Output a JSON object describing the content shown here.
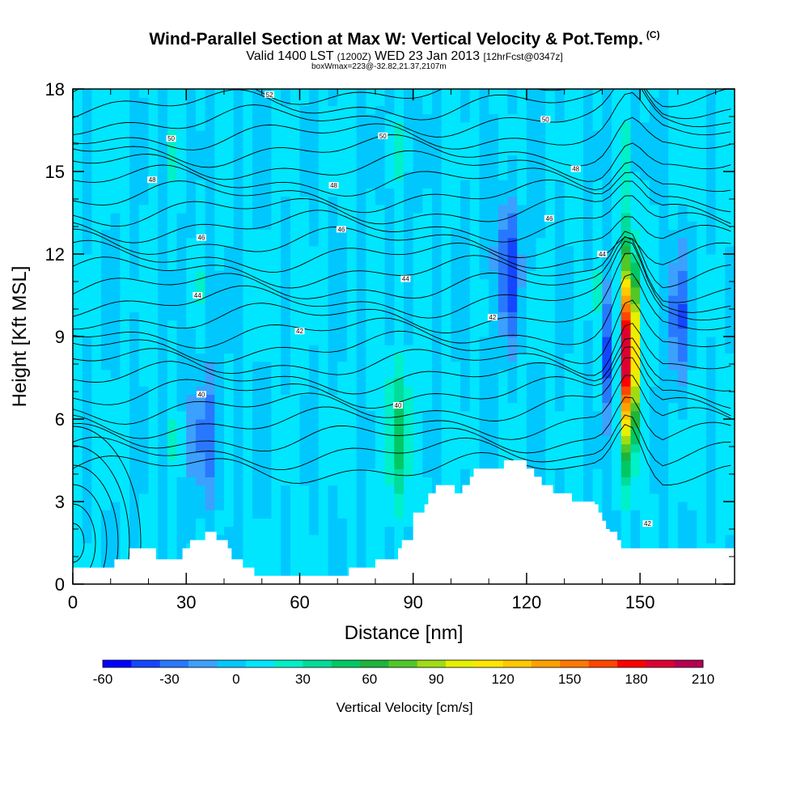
{
  "header": {
    "title": "Wind-Parallel Section at Max W: Vertical Velocity & Pot.Temp.",
    "title_mark": "(C)",
    "subtitle_a": "Valid 1400 LST",
    "subtitle_b": "(1200Z)",
    "subtitle_c": "WED 23 Jan 2013",
    "subtitle_d": "[12hrFcst@0347z]",
    "subtitle2": "boxWmax=223@-32.82,21.37,2107m"
  },
  "chart_data": {
    "type": "heatmap",
    "xlabel": "Distance [nm]",
    "ylabel": "Height [Kft MSL]",
    "xlim": [
      0,
      175
    ],
    "ylim": [
      0,
      18
    ],
    "x_ticks": [
      0,
      30,
      60,
      90,
      120,
      150
    ],
    "y_ticks": [
      0,
      3,
      6,
      9,
      12,
      15,
      18
    ],
    "colorbar": {
      "label": "Vertical Velocity [cm/s]",
      "min": -60,
      "max": 210,
      "step": 15,
      "tick_labels": [
        -60,
        -30,
        0,
        30,
        60,
        90,
        120,
        150,
        180,
        210
      ],
      "colors": [
        "#0000ff",
        "#1446ff",
        "#2878ff",
        "#3ca0ff",
        "#00c8ff",
        "#00e6ff",
        "#00f0c8",
        "#00dc9a",
        "#00c864",
        "#1eb43c",
        "#50c828",
        "#a0dc14",
        "#e6f000",
        "#ffe600",
        "#ffc800",
        "#ffa000",
        "#ff7800",
        "#ff4600",
        "#ff0000",
        "#dc0032",
        "#b40050"
      ]
    },
    "terrain": [
      [
        0,
        0.6
      ],
      [
        10,
        0.6
      ],
      [
        11,
        0.9
      ],
      [
        15,
        1.3
      ],
      [
        21,
        1.3
      ],
      [
        22,
        0.9
      ],
      [
        28,
        0.9
      ],
      [
        29,
        1.3
      ],
      [
        31,
        1.6
      ],
      [
        35,
        1.9
      ],
      [
        38,
        1.6
      ],
      [
        41,
        1.3
      ],
      [
        42,
        0.9
      ],
      [
        45,
        0.6
      ],
      [
        48,
        0.3
      ],
      [
        68,
        0.3
      ],
      [
        73,
        0.6
      ],
      [
        80,
        0.9
      ],
      [
        84,
        0.9
      ],
      [
        86,
        1.3
      ],
      [
        87,
        1.6
      ],
      [
        90,
        2.6
      ],
      [
        93,
        2.9
      ],
      [
        94,
        3.3
      ],
      [
        96,
        3.6
      ],
      [
        100,
        3.6
      ],
      [
        101,
        3.3
      ],
      [
        103,
        3.6
      ],
      [
        105,
        3.9
      ],
      [
        106,
        4.2
      ],
      [
        113,
        4.2
      ],
      [
        114,
        4.5
      ],
      [
        118,
        4.5
      ],
      [
        120,
        4.2
      ],
      [
        122,
        3.9
      ],
      [
        124,
        3.6
      ],
      [
        127,
        3.3
      ],
      [
        131,
        3.3
      ],
      [
        132,
        3.0
      ],
      [
        137,
        3.0
      ],
      [
        138,
        2.9
      ],
      [
        139,
        2.6
      ],
      [
        140,
        2.3
      ],
      [
        141,
        2.0
      ],
      [
        142,
        1.9
      ],
      [
        144,
        1.6
      ],
      [
        145,
        1.3
      ],
      [
        175,
        1.3
      ]
    ],
    "features": [
      {
        "kind": "updraft",
        "x": 147,
        "y": 8.5,
        "value": 223
      },
      {
        "kind": "downdraft",
        "x": 142,
        "y": 8.5,
        "value": -55
      },
      {
        "kind": "downdraft",
        "x": 160,
        "y": 9.5,
        "value": -60
      },
      {
        "kind": "downdraft",
        "x": 115,
        "y": 11.5,
        "value": -45
      },
      {
        "kind": "downdraft",
        "x": 35,
        "y": 5.5,
        "value": -30
      },
      {
        "kind": "updraft",
        "x": 86,
        "y": 5.5,
        "value": 35
      }
    ],
    "isentrope_labels": [
      {
        "x": 52,
        "y": 17.8,
        "text": "52"
      },
      {
        "x": 26,
        "y": 16.2,
        "text": "50"
      },
      {
        "x": 82,
        "y": 16.3,
        "text": "50"
      },
      {
        "x": 125,
        "y": 16.9,
        "text": "50"
      },
      {
        "x": 21,
        "y": 14.7,
        "text": "48"
      },
      {
        "x": 69,
        "y": 14.5,
        "text": "48"
      },
      {
        "x": 133,
        "y": 15.1,
        "text": "48"
      },
      {
        "x": 34,
        "y": 12.6,
        "text": "46"
      },
      {
        "x": 71,
        "y": 12.9,
        "text": "46"
      },
      {
        "x": 126,
        "y": 13.3,
        "text": "46"
      },
      {
        "x": 33,
        "y": 10.5,
        "text": "44"
      },
      {
        "x": 88,
        "y": 11.1,
        "text": "44"
      },
      {
        "x": 140,
        "y": 12.0,
        "text": "44"
      },
      {
        "x": 60,
        "y": 9.2,
        "text": "42"
      },
      {
        "x": 111,
        "y": 9.7,
        "text": "42"
      },
      {
        "x": 152,
        "y": 2.2,
        "text": "42"
      },
      {
        "x": 34,
        "y": 6.9,
        "text": "40"
      },
      {
        "x": 86,
        "y": 6.5,
        "text": "40"
      }
    ]
  }
}
